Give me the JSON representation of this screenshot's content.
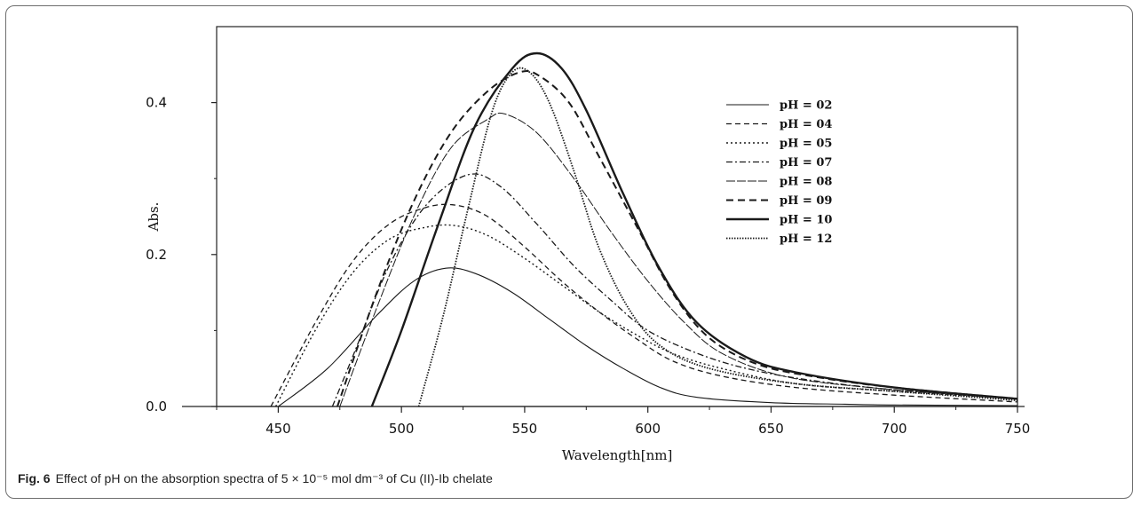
{
  "caption": {
    "label": "Fig. 6",
    "text": "Effect of pH on the absorption spectra of 5 × 10⁻⁵ mol dm⁻³ of Cu (II)-Ib chelate"
  },
  "chart_data": {
    "type": "line",
    "title": "",
    "xlabel": "Wavelength[nm]",
    "ylabel": "Abs.",
    "xlim": [
      425,
      750
    ],
    "ylim": [
      0,
      0.5
    ],
    "xticks": [
      450,
      500,
      550,
      600,
      650,
      700,
      750
    ],
    "yticks": [
      0.0,
      0.2,
      0.4
    ],
    "ytick_labels": [
      "0.0",
      "0.2",
      "0.4"
    ],
    "grid": false,
    "legend_position": "top-right",
    "series": [
      {
        "name": "pH = 02",
        "style": "solid-thin",
        "points": [
          [
            450,
            0
          ],
          [
            470,
            0.05
          ],
          [
            490,
            0.12
          ],
          [
            505,
            0.165
          ],
          [
            518,
            0.182
          ],
          [
            530,
            0.175
          ],
          [
            545,
            0.15
          ],
          [
            560,
            0.115
          ],
          [
            575,
            0.08
          ],
          [
            590,
            0.05
          ],
          [
            605,
            0.025
          ],
          [
            620,
            0.012
          ],
          [
            650,
            0.005
          ],
          [
            680,
            0.003
          ],
          [
            700,
            0.002
          ],
          [
            750,
            0.001
          ]
        ]
      },
      {
        "name": "pH = 04",
        "style": "dashed-thin",
        "points": [
          [
            447,
            0
          ],
          [
            465,
            0.11
          ],
          [
            480,
            0.19
          ],
          [
            495,
            0.24
          ],
          [
            510,
            0.262
          ],
          [
            522,
            0.265
          ],
          [
            535,
            0.25
          ],
          [
            550,
            0.21
          ],
          [
            565,
            0.165
          ],
          [
            580,
            0.125
          ],
          [
            595,
            0.09
          ],
          [
            610,
            0.06
          ],
          [
            630,
            0.04
          ],
          [
            660,
            0.025
          ],
          [
            700,
            0.015
          ],
          [
            750,
            0.006
          ]
        ]
      },
      {
        "name": "pH = 05",
        "style": "dotted",
        "points": [
          [
            449,
            0
          ],
          [
            465,
            0.1
          ],
          [
            480,
            0.175
          ],
          [
            495,
            0.22
          ],
          [
            510,
            0.236
          ],
          [
            522,
            0.238
          ],
          [
            535,
            0.225
          ],
          [
            550,
            0.195
          ],
          [
            565,
            0.16
          ],
          [
            580,
            0.125
          ],
          [
            595,
            0.095
          ],
          [
            610,
            0.07
          ],
          [
            630,
            0.05
          ],
          [
            660,
            0.03
          ],
          [
            700,
            0.02
          ],
          [
            750,
            0.01
          ]
        ]
      },
      {
        "name": "pH = 07",
        "style": "dash-dot",
        "points": [
          [
            472,
            0
          ],
          [
            482,
            0.08
          ],
          [
            495,
            0.185
          ],
          [
            510,
            0.265
          ],
          [
            527,
            0.305
          ],
          [
            540,
            0.29
          ],
          [
            555,
            0.24
          ],
          [
            570,
            0.185
          ],
          [
            585,
            0.14
          ],
          [
            600,
            0.1
          ],
          [
            620,
            0.07
          ],
          [
            640,
            0.05
          ],
          [
            665,
            0.035
          ],
          [
            700,
            0.022
          ],
          [
            750,
            0.01
          ]
        ]
      },
      {
        "name": "pH = 08",
        "style": "long-dash-thin",
        "points": [
          [
            475,
            0
          ],
          [
            490,
            0.13
          ],
          [
            505,
            0.25
          ],
          [
            520,
            0.34
          ],
          [
            535,
            0.378
          ],
          [
            542,
            0.385
          ],
          [
            555,
            0.36
          ],
          [
            570,
            0.3
          ],
          [
            585,
            0.23
          ],
          [
            600,
            0.165
          ],
          [
            615,
            0.11
          ],
          [
            630,
            0.07
          ],
          [
            655,
            0.04
          ],
          [
            690,
            0.025
          ],
          [
            750,
            0.01
          ]
        ]
      },
      {
        "name": "pH = 09",
        "style": "dashed-thick",
        "points": [
          [
            474,
            0
          ],
          [
            490,
            0.15
          ],
          [
            505,
            0.27
          ],
          [
            520,
            0.36
          ],
          [
            535,
            0.415
          ],
          [
            548,
            0.44
          ],
          [
            556,
            0.435
          ],
          [
            568,
            0.4
          ],
          [
            580,
            0.33
          ],
          [
            595,
            0.24
          ],
          [
            610,
            0.15
          ],
          [
            625,
            0.09
          ],
          [
            645,
            0.055
          ],
          [
            670,
            0.038
          ],
          [
            700,
            0.025
          ],
          [
            750,
            0.01
          ]
        ]
      },
      {
        "name": "pH = 10",
        "style": "solid-thick",
        "points": [
          [
            488,
            0
          ],
          [
            500,
            0.1
          ],
          [
            515,
            0.24
          ],
          [
            530,
            0.37
          ],
          [
            545,
            0.445
          ],
          [
            555,
            0.465
          ],
          [
            565,
            0.445
          ],
          [
            575,
            0.39
          ],
          [
            590,
            0.28
          ],
          [
            605,
            0.18
          ],
          [
            620,
            0.11
          ],
          [
            640,
            0.065
          ],
          [
            660,
            0.045
          ],
          [
            700,
            0.025
          ],
          [
            750,
            0.01
          ]
        ]
      },
      {
        "name": "pH = 12",
        "style": "dense-dotted",
        "points": [
          [
            507,
            0
          ],
          [
            517,
            0.12
          ],
          [
            527,
            0.26
          ],
          [
            537,
            0.39
          ],
          [
            545,
            0.44
          ],
          [
            552,
            0.44
          ],
          [
            560,
            0.4
          ],
          [
            570,
            0.31
          ],
          [
            580,
            0.21
          ],
          [
            592,
            0.13
          ],
          [
            605,
            0.08
          ],
          [
            625,
            0.05
          ],
          [
            660,
            0.03
          ],
          [
            700,
            0.02
          ],
          [
            750,
            0.008
          ]
        ]
      }
    ]
  }
}
